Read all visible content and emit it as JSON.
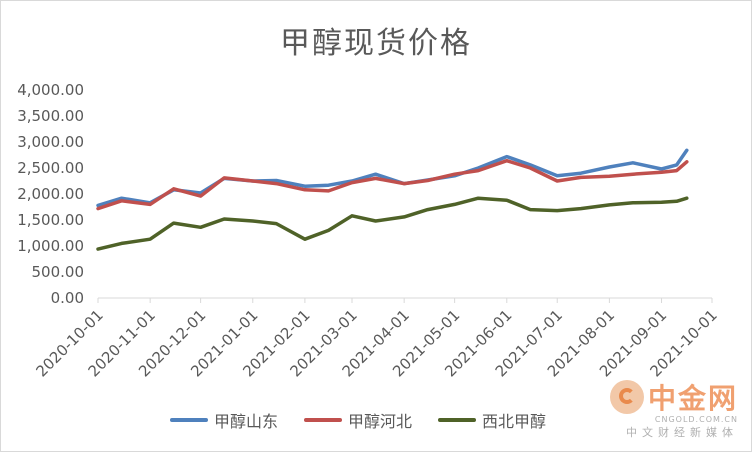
{
  "chart_data": {
    "type": "line",
    "title": "甲醇现货价格",
    "xlabel": "",
    "ylabel": "",
    "ylim": [
      0,
      4000
    ],
    "yticks": [
      "0.00",
      "500.00",
      "1,000.00",
      "1,500.00",
      "2,000.00",
      "2,500.00",
      "3,000.00",
      "3,500.00",
      "4,000.00"
    ],
    "x_ticks": [
      "2020-10-01",
      "2020-11-01",
      "2020-12-01",
      "2021-01-01",
      "2021-02-01",
      "2021-03-01",
      "2021-04-01",
      "2021-05-01",
      "2021-06-01",
      "2021-07-01",
      "2021-08-01",
      "2021-09-01",
      "2021-10-01"
    ],
    "grid": false,
    "legend_position": "bottom",
    "x": [
      "2020-10-01",
      "2020-10-15",
      "2020-11-01",
      "2020-11-15",
      "2020-12-01",
      "2020-12-15",
      "2021-01-01",
      "2021-01-15",
      "2021-02-01",
      "2021-02-15",
      "2021-03-01",
      "2021-03-15",
      "2021-04-01",
      "2021-04-15",
      "2021-05-01",
      "2021-05-15",
      "2021-06-01",
      "2021-06-15",
      "2021-07-01",
      "2021-07-15",
      "2021-08-01",
      "2021-08-15",
      "2021-09-01",
      "2021-09-10",
      "2021-09-16"
    ],
    "series": [
      {
        "name": "甲醇山东",
        "color": "#4f81bd",
        "values": [
          1780,
          1920,
          1830,
          2080,
          2020,
          2300,
          2250,
          2260,
          2150,
          2170,
          2250,
          2380,
          2200,
          2270,
          2350,
          2500,
          2720,
          2560,
          2350,
          2400,
          2520,
          2600,
          2480,
          2560,
          2840
        ]
      },
      {
        "name": "甲醇河北",
        "color": "#c0504d",
        "values": [
          1720,
          1870,
          1800,
          2100,
          1960,
          2310,
          2250,
          2200,
          2080,
          2060,
          2220,
          2300,
          2200,
          2260,
          2380,
          2450,
          2640,
          2500,
          2250,
          2320,
          2340,
          2380,
          2420,
          2450,
          2620
        ]
      },
      {
        "name": "西北甲醇",
        "color": "#4f6228",
        "values": [
          940,
          1050,
          1130,
          1440,
          1360,
          1520,
          1480,
          1430,
          1130,
          1300,
          1580,
          1480,
          1560,
          1700,
          1800,
          1920,
          1880,
          1700,
          1680,
          1720,
          1790,
          1830,
          1840,
          1860,
          1920
        ]
      }
    ]
  },
  "watermark": {
    "name": "中金网",
    "domain": "CNGOLD.COM.CN",
    "tagline": "中文财经新媒体"
  }
}
